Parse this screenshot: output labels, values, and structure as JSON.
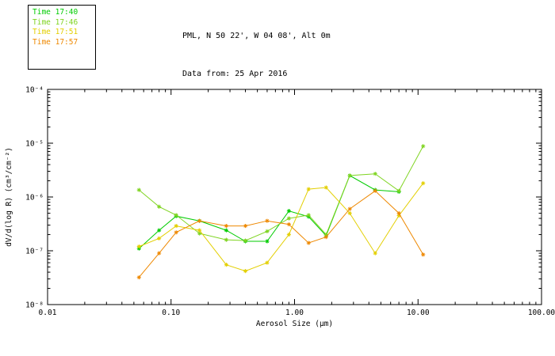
{
  "header": {
    "line1": "PML, N 50 22', W 04 08', Alt 0m",
    "line2": "Data from: 25 Apr 2016"
  },
  "legend": {
    "items": [
      {
        "label": "Time 17:40",
        "color": "#00cc00"
      },
      {
        "label": "Time 17:46",
        "color": "#7fd421"
      },
      {
        "label": "Time 17:51",
        "color": "#e3cf00"
      },
      {
        "label": "Time 17:57",
        "color": "#ee8800"
      }
    ]
  },
  "chart_data": {
    "type": "line",
    "title": "",
    "xlabel": "Aerosol Size (μm)",
    "ylabel": "dV/d(log R) (cm³/cm⁻²)",
    "x_scale": "log",
    "y_scale": "log",
    "xlim": [
      0.01,
      100
    ],
    "ylim": [
      1e-08,
      0.0001
    ],
    "grid": false,
    "legend_position": "top-left-outside",
    "marker": "asterisk",
    "x_ticks": {
      "values": [
        0.01,
        0.1,
        1,
        10,
        100
      ],
      "labels": [
        "0.01",
        "0.10",
        "1.00",
        "10.00",
        "100.00"
      ]
    },
    "y_ticks": {
      "values": [
        1e-08,
        1e-07,
        1e-06,
        1e-05,
        0.0001
      ],
      "labels": [
        "10⁻⁸",
        "10⁻⁷",
        "10⁻⁶",
        "10⁻⁵",
        "10⁻⁴"
      ]
    },
    "x": [
      0.055,
      0.08,
      0.11,
      0.17,
      0.28,
      0.4,
      0.6,
      0.9,
      1.3,
      1.8,
      2.8,
      4.5,
      7.0,
      11.0
    ],
    "series": [
      {
        "name": "Time 17:40",
        "color": "#00cc00",
        "values": [
          1.1e-07,
          2.4e-07,
          4.4e-07,
          3.6e-07,
          2.4e-07,
          1.5e-07,
          1.5e-07,
          5.5e-07,
          4.3e-07,
          1.9e-07,
          2.5e-06,
          1.35e-06,
          1.25e-06,
          null
        ]
      },
      {
        "name": "Time 17:46",
        "color": "#7fd421",
        "values": [
          1.35e-06,
          6.6e-07,
          4.6e-07,
          2.1e-07,
          1.6e-07,
          1.55e-07,
          2.3e-07,
          4e-07,
          4.6e-07,
          2e-07,
          2.5e-06,
          2.7e-06,
          1.3e-06,
          8.8e-06
        ]
      },
      {
        "name": "Time 17:51",
        "color": "#e3cf00",
        "values": [
          1.2e-07,
          1.7e-07,
          2.9e-07,
          2.4e-07,
          5.5e-08,
          4.2e-08,
          6e-08,
          2e-07,
          1.4e-06,
          1.5e-06,
          5e-07,
          9e-08,
          4.5e-07,
          1.8e-06
        ]
      },
      {
        "name": "Time 17:57",
        "color": "#ee8800",
        "values": [
          3.2e-08,
          9e-08,
          2.2e-07,
          3.6e-07,
          2.9e-07,
          2.9e-07,
          3.6e-07,
          3.1e-07,
          1.4e-07,
          1.8e-07,
          6e-07,
          1.3e-06,
          5e-07,
          8.5e-08
        ]
      }
    ]
  }
}
